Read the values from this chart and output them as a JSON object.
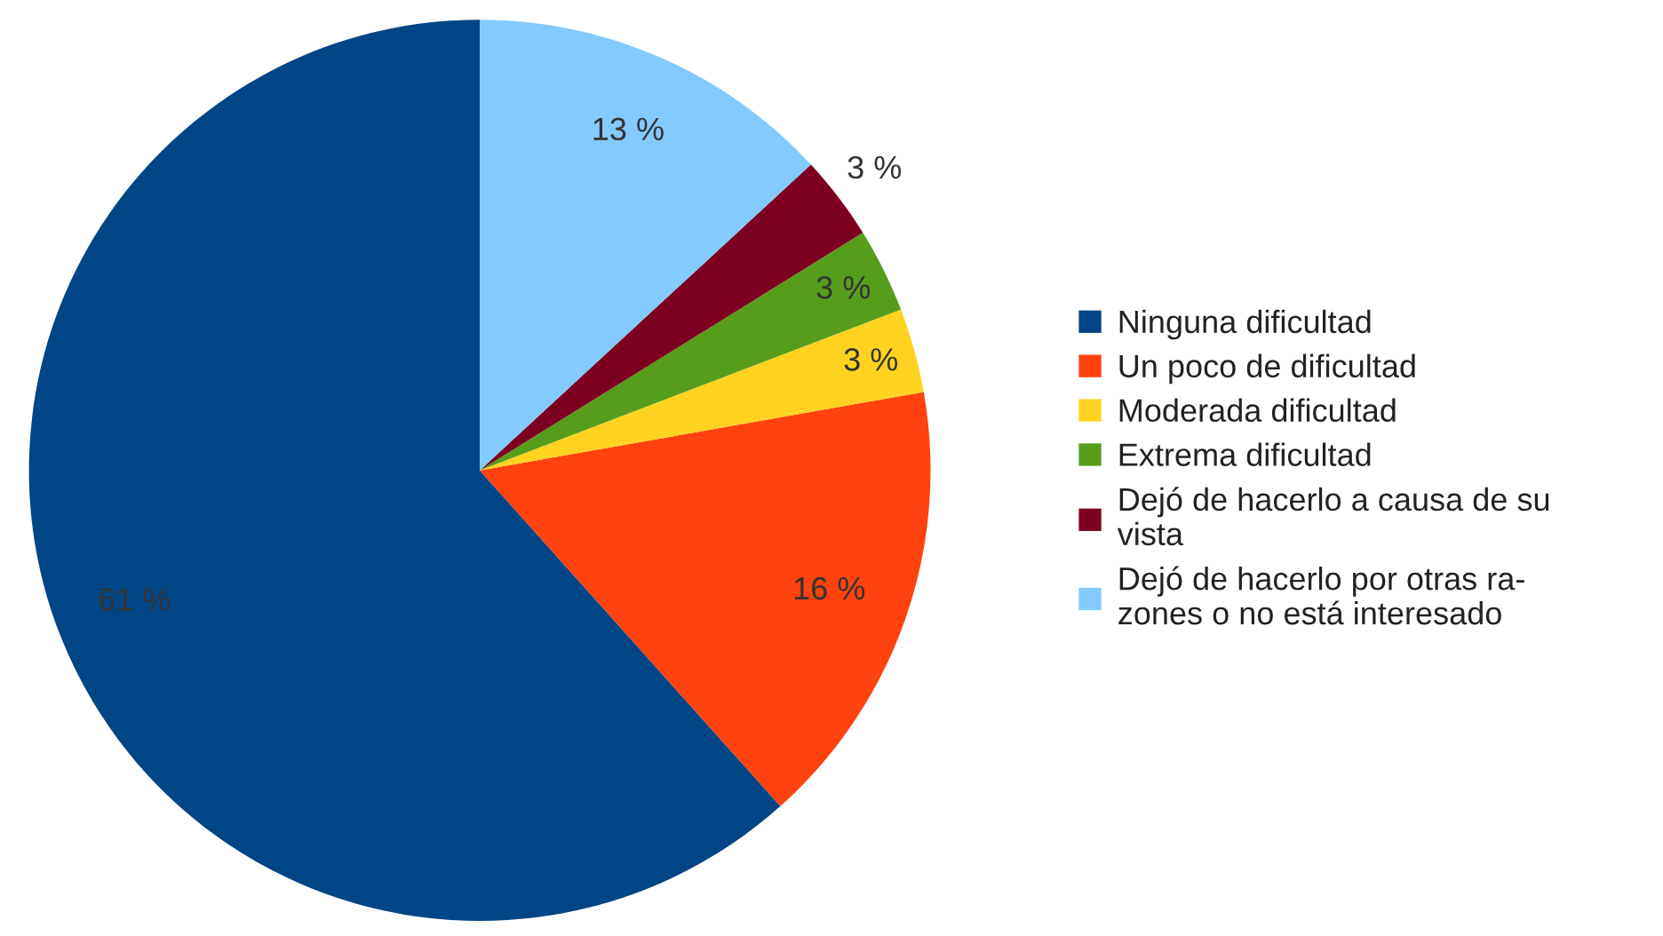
{
  "chart_data": {
    "type": "pie",
    "categories": [
      "Ninguna dificultad",
      "Un poco de dificultad",
      "Moderada dificultad",
      "Extrema dificultad",
      "Dejó de hacerlo a causa de su\nvista",
      "Dejó de hacerlo por otras ra-\nzones o no está interesado"
    ],
    "values": [
      61,
      16,
      3,
      3,
      3,
      13
    ],
    "colors": [
      "#004586",
      "#ff420e",
      "#ffd320",
      "#579d1c",
      "#7e0021",
      "#83caff"
    ],
    "value_labels": [
      "61 %",
      "16 %",
      "3 %",
      "3 %",
      "3 %",
      "13 %"
    ],
    "legend": "right"
  }
}
